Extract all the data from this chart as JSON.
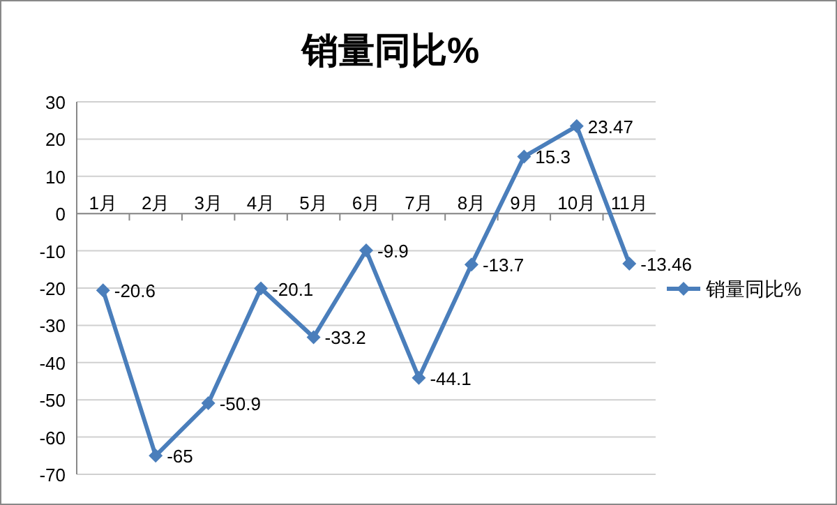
{
  "chart_data": {
    "type": "line",
    "title": "销量同比%",
    "categories": [
      "1月",
      "2月",
      "3月",
      "4月",
      "5月",
      "6月",
      "7月",
      "8月",
      "9月",
      "10月",
      "11月"
    ],
    "series": [
      {
        "name": "销量同比%",
        "color": "#4a7ebb",
        "values": [
          -20.6,
          -65,
          -50.9,
          -20.1,
          -33.2,
          -9.9,
          -44.1,
          -13.7,
          15.3,
          23.47,
          -13.46
        ]
      }
    ],
    "ylim": [
      -70,
      30
    ],
    "yticks": [
      -70,
      -60,
      -50,
      -40,
      -30,
      -20,
      -10,
      0,
      10,
      20,
      30
    ],
    "grid": "y",
    "legend": "right",
    "marker": "diamond",
    "data_labels": true
  }
}
